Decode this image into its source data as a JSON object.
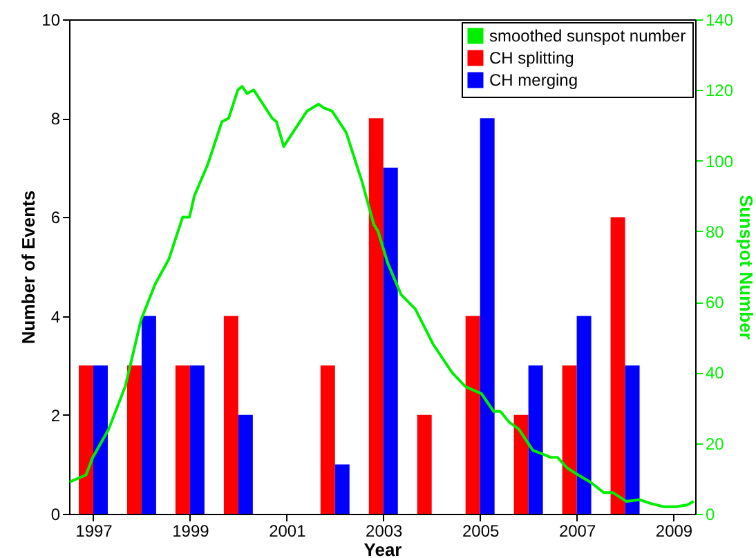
{
  "chart_data": {
    "type": "bar",
    "xlabel": "Year",
    "ylabel": "Number of Events",
    "y2label": "Sunspot Number",
    "x": [
      1997,
      1998,
      1999,
      2000,
      2001,
      2002,
      2003,
      2004,
      2005,
      2006,
      2007,
      2008
    ],
    "series": [
      {
        "name": "smoothed sunspot number",
        "type": "line",
        "axis": "y2",
        "color": "#00ee00",
        "x": [
          1996.51,
          1996.85,
          1996.99,
          1997.32,
          1997.66,
          1997.99,
          1998.28,
          1998.56,
          1998.85,
          1998.99,
          1999.09,
          1999.37,
          1999.66,
          1999.8,
          1999.99,
          2000.08,
          2000.18,
          2000.32,
          2000.7,
          2000.79,
          2000.94,
          2001.13,
          2001.42,
          2001.66,
          2001.76,
          2001.94,
          2002.23,
          2002.56,
          2002.8,
          2002.89,
          2003.09,
          2003.37,
          2003.66,
          2004.03,
          2004.42,
          2004.7,
          2005.03,
          2005.28,
          2005.42,
          2005.6,
          2005.8,
          2006.09,
          2006.28,
          2006.46,
          2006.6,
          2006.8,
          2007.03,
          2007.28,
          2007.56,
          2007.75,
          2008.03,
          2008.3,
          2008.51,
          2008.8,
          2009.05,
          2009.28,
          2009.42
        ],
        "values": [
          9,
          11,
          16,
          24,
          36,
          55,
          65,
          72,
          84,
          84,
          90,
          99,
          111,
          112,
          120,
          121,
          119,
          120,
          112,
          111,
          104,
          108,
          114,
          116,
          115,
          114,
          108,
          94,
          82,
          80,
          71,
          62,
          58,
          48,
          40,
          36,
          34,
          29,
          29,
          26,
          24,
          18,
          17,
          16,
          16,
          13,
          11,
          9,
          6,
          6,
          3.5,
          4,
          3,
          2,
          2,
          2.5,
          3.5
        ]
      },
      {
        "name": "CH splitting",
        "color": "#ff0000",
        "values": [
          3,
          3,
          3,
          4,
          0,
          3,
          8,
          2,
          4,
          2,
          3,
          6
        ]
      },
      {
        "name": "CH merging",
        "color": "#0000ff",
        "values": [
          3,
          4,
          3,
          2,
          0,
          1,
          7,
          0,
          8,
          3,
          4,
          3
        ]
      }
    ],
    "xlim": [
      1996.5,
      2009.45
    ],
    "xticks": [
      1997,
      1999,
      2001,
      2003,
      2005,
      2007,
      2009
    ],
    "ylim": [
      0,
      10
    ],
    "yticks": [
      0,
      2,
      4,
      6,
      8,
      10
    ],
    "y2lim": [
      0,
      140
    ],
    "y2ticks": [
      0,
      20,
      40,
      60,
      80,
      100,
      120,
      140
    ],
    "legend": "top right",
    "grid": false
  }
}
